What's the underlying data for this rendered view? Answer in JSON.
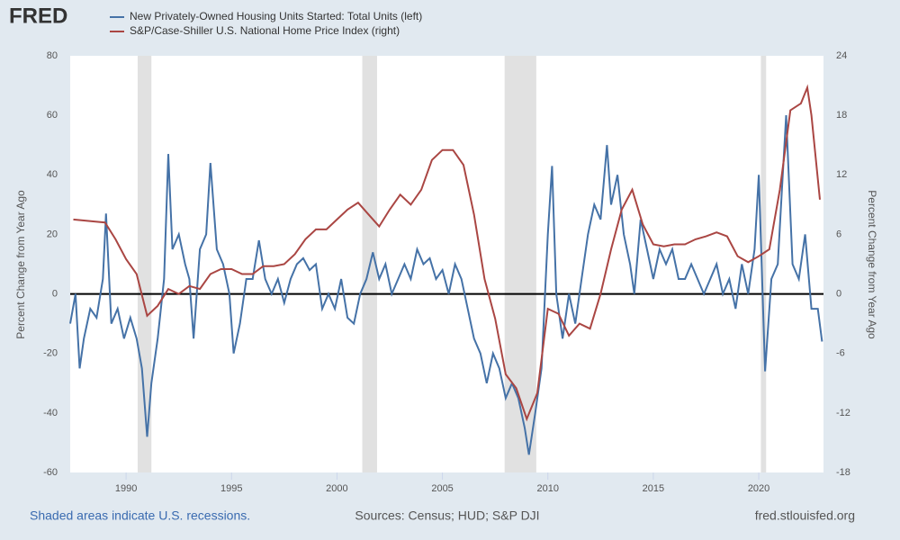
{
  "chart_data": {
    "type": "line",
    "logo": "FRED",
    "ylabel": "Percent Change from Year Ago",
    "y2label": "Percent Change from Year Ago",
    "note": "Shaded areas indicate U.S. recessions.",
    "source": "Sources: Census; HUD; S&P DJI",
    "site": "fred.stlouisfed.org",
    "xlim": [
      1987.35,
      2023.07
    ],
    "xticks": [
      1990,
      1995,
      2000,
      2005,
      2010,
      2015,
      2020
    ],
    "ylim": [
      -60,
      80
    ],
    "yticks": [
      -60,
      -40,
      -20,
      0,
      20,
      40,
      60,
      80
    ],
    "y2lim": [
      -18,
      24
    ],
    "y2ticks": [
      -18,
      -12,
      -6,
      0,
      6,
      12,
      18,
      24
    ],
    "grid": false,
    "recessions": [
      [
        1990.55,
        1991.2
      ],
      [
        2001.2,
        2001.9
      ],
      [
        2007.95,
        2009.45
      ],
      [
        2020.1,
        2020.35
      ]
    ],
    "series": [
      {
        "name": "New Privately-Owned Housing Units Started: Total Units (left)",
        "color": "#4572a7",
        "x": [
          1987.35,
          1987.6,
          1987.8,
          1988,
          1988.3,
          1988.6,
          1988.9,
          1989.05,
          1989.3,
          1989.6,
          1989.9,
          1990.2,
          1990.5,
          1990.75,
          1991.0,
          1991.2,
          1991.5,
          1991.8,
          1992.0,
          1992.2,
          1992.5,
          1992.8,
          1993.0,
          1993.2,
          1993.5,
          1993.8,
          1994.0,
          1994.3,
          1994.6,
          1994.9,
          1995.1,
          1995.4,
          1995.7,
          1996.0,
          1996.3,
          1996.6,
          1996.9,
          1997.2,
          1997.5,
          1997.8,
          1998.1,
          1998.4,
          1998.7,
          1999.0,
          1999.3,
          1999.6,
          1999.9,
          2000.2,
          2000.5,
          2000.8,
          2001.1,
          2001.4,
          2001.7,
          2002.0,
          2002.3,
          2002.6,
          2002.9,
          2003.2,
          2003.5,
          2003.8,
          2004.1,
          2004.4,
          2004.7,
          2005.0,
          2005.3,
          2005.6,
          2005.9,
          2006.2,
          2006.5,
          2006.8,
          2007.1,
          2007.4,
          2007.7,
          2008.0,
          2008.3,
          2008.6,
          2008.9,
          2009.1,
          2009.4,
          2009.7,
          2010.0,
          2010.2,
          2010.4,
          2010.7,
          2011.0,
          2011.3,
          2011.6,
          2011.9,
          2012.2,
          2012.5,
          2012.8,
          2013.0,
          2013.3,
          2013.6,
          2013.9,
          2014.1,
          2014.4,
          2014.7,
          2015.0,
          2015.3,
          2015.6,
          2015.9,
          2016.2,
          2016.5,
          2016.8,
          2017.1,
          2017.4,
          2017.7,
          2018.0,
          2018.3,
          2018.6,
          2018.9,
          2019.2,
          2019.5,
          2019.8,
          2020.0,
          2020.3,
          2020.6,
          2020.9,
          2021.1,
          2021.3,
          2021.6,
          2021.9,
          2022.2,
          2022.5,
          2022.8,
          2023.0
        ],
        "values": [
          -10,
          0,
          -25,
          -15,
          -5,
          -8,
          5,
          27,
          -10,
          -5,
          -15,
          -8,
          -15,
          -25,
          -48,
          -30,
          -15,
          5,
          47,
          15,
          20,
          10,
          5,
          -15,
          15,
          20,
          44,
          15,
          10,
          0,
          -20,
          -10,
          5,
          5,
          18,
          5,
          0,
          5,
          -3,
          5,
          10,
          12,
          8,
          10,
          -5,
          0,
          -5,
          5,
          -8,
          -10,
          0,
          5,
          14,
          5,
          10,
          0,
          5,
          10,
          5,
          15,
          10,
          12,
          5,
          8,
          0,
          10,
          5,
          -5,
          -15,
          -20,
          -30,
          -20,
          -25,
          -35,
          -30,
          -35,
          -45,
          -54,
          -40,
          -25,
          20,
          43,
          0,
          -15,
          0,
          -10,
          5,
          20,
          30,
          25,
          50,
          30,
          40,
          20,
          10,
          0,
          25,
          15,
          5,
          15,
          10,
          15,
          5,
          5,
          10,
          5,
          0,
          5,
          10,
          0,
          5,
          -5,
          10,
          0,
          15,
          40,
          -26,
          5,
          10,
          35,
          60,
          10,
          5,
          20,
          -5,
          -5,
          -16
        ]
      },
      {
        "name": "S&P/Case-Shiller U.S. National Home Price Index (right)",
        "color": "#aa4643",
        "axis": "y2",
        "x": [
          1987.5,
          1988.5,
          1989,
          1989.5,
          1990,
          1990.5,
          1991,
          1991.5,
          1992,
          1992.5,
          1993,
          1993.5,
          1994,
          1994.5,
          1995,
          1995.5,
          1996,
          1996.5,
          1997,
          1997.5,
          1998,
          1998.5,
          1999,
          1999.5,
          2000,
          2000.5,
          2001,
          2001.5,
          2002,
          2002.5,
          2003,
          2003.5,
          2004,
          2004.5,
          2005,
          2005.5,
          2006,
          2006.5,
          2007,
          2007.5,
          2008,
          2008.5,
          2009,
          2009.5,
          2010,
          2010.5,
          2011,
          2011.5,
          2012,
          2012.5,
          2013,
          2013.5,
          2014,
          2014.5,
          2015,
          2015.5,
          2016,
          2016.5,
          2017,
          2017.5,
          2018,
          2018.5,
          2019,
          2019.5,
          2020,
          2020.5,
          2021,
          2021.5,
          2022,
          2022.3,
          2022.5,
          2022.9
        ],
        "values": [
          7.5,
          7.3,
          7.2,
          5.5,
          3.5,
          2,
          -2.2,
          -1.2,
          0.5,
          0,
          0.8,
          0.5,
          2.0,
          2.5,
          2.5,
          2.0,
          2.0,
          2.8,
          2.8,
          3.0,
          4.0,
          5.5,
          6.5,
          6.5,
          7.5,
          8.5,
          9.2,
          8.0,
          6.8,
          8.5,
          10.0,
          9.0,
          10.5,
          13.5,
          14.5,
          14.5,
          13.0,
          8.0,
          1.5,
          -2.5,
          -8.1,
          -9.5,
          -12.6,
          -10,
          -1.5,
          -2,
          -4.2,
          -3.0,
          -3.5,
          0,
          4.5,
          8.5,
          10.5,
          7.0,
          5.0,
          4.8,
          5.0,
          5.0,
          5.5,
          5.8,
          6.2,
          5.8,
          3.8,
          3.2,
          3.8,
          4.5,
          10.5,
          18.5,
          19.2,
          20.8,
          18.0,
          9.5
        ]
      }
    ]
  }
}
